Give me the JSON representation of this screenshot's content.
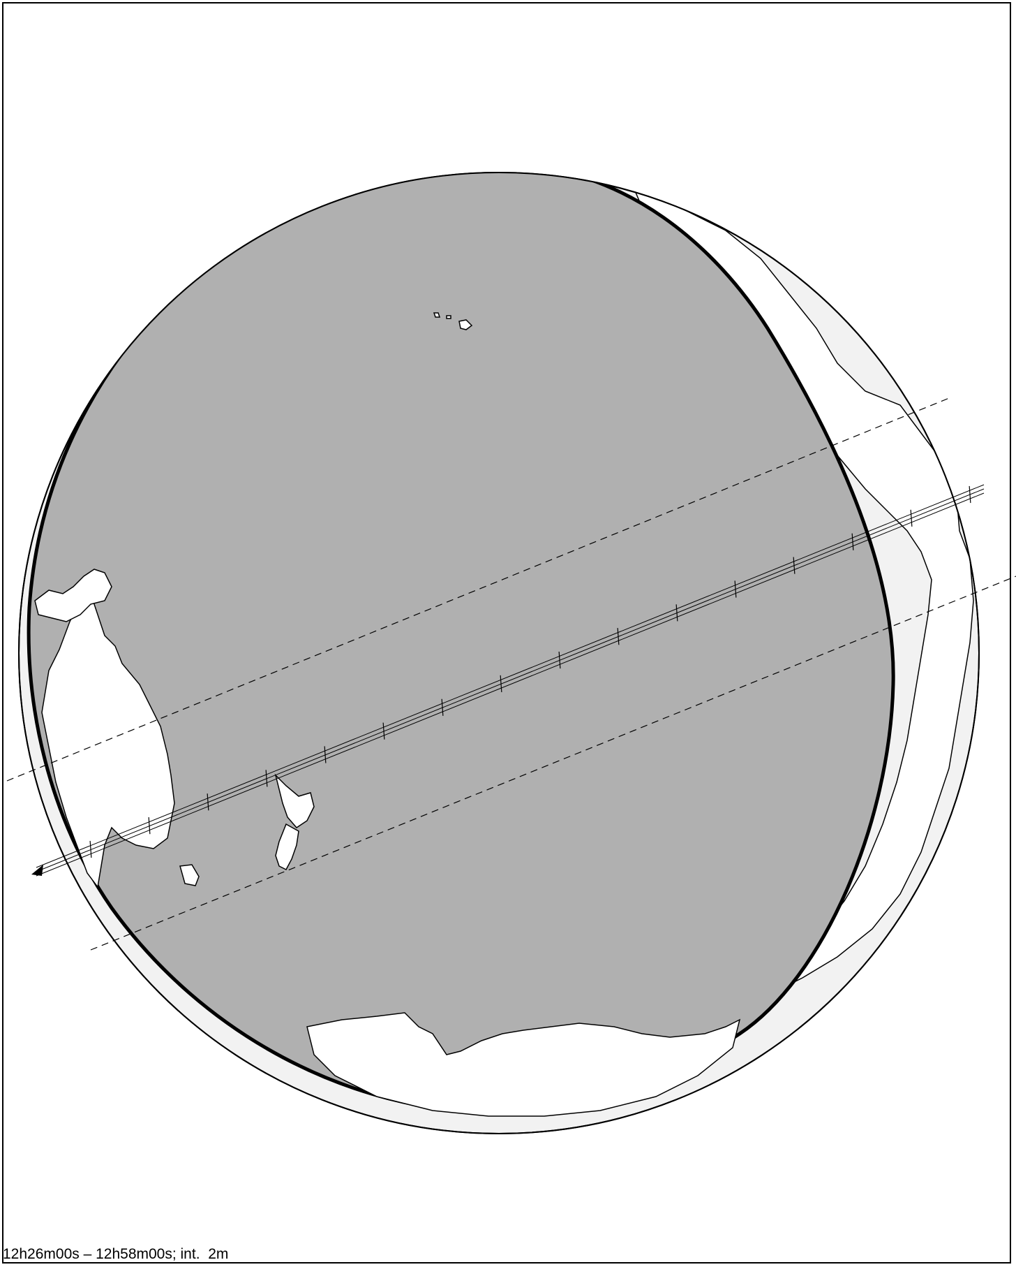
{
  "map": {
    "caption": "12h26m00s – 12h58m00s; int.  2m",
    "colors": {
      "shadow_region": "#b0b0b0",
      "day_side": "#f2f2f2",
      "land": "#ffffff",
      "outline": "#000000"
    },
    "track_tick_count": 16,
    "landmasses": [
      "Australia",
      "New Guinea",
      "New Zealand",
      "Antarctica",
      "North America",
      "South America",
      "Hawaii"
    ]
  }
}
